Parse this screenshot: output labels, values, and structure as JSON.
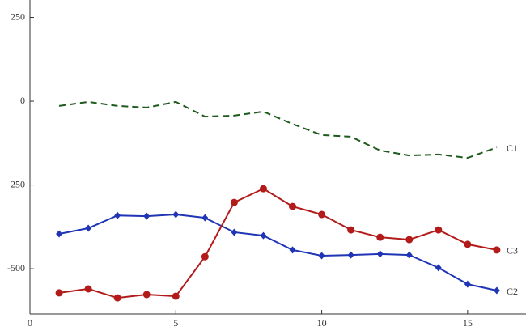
{
  "chart_data": {
    "type": "line",
    "x": [
      1,
      2,
      3,
      4,
      5,
      6,
      7,
      8,
      9,
      10,
      11,
      12,
      13,
      14,
      15,
      16
    ],
    "series": [
      {
        "name": "C1",
        "color": "#1e5a1e",
        "dash": true,
        "marker": "none",
        "values": [
          -14,
          -2,
          -14,
          -19,
          -2,
          -46,
          -43,
          -31,
          -68,
          -101,
          -106,
          -147,
          -162,
          -159,
          -169,
          -138
        ]
      },
      {
        "name": "C2",
        "color": "#1f35b5",
        "dash": false,
        "marker": "diamond",
        "values": [
          -396,
          -379,
          -341,
          -343,
          -338,
          -348,
          -391,
          -401,
          -444,
          -461,
          -459,
          -456,
          -459,
          -497,
          -546,
          -565
        ]
      },
      {
        "name": "C3",
        "color": "#b31b1b",
        "dash": false,
        "marker": "circle",
        "values": [
          -572,
          -560,
          -587,
          -577,
          -582,
          -464,
          -302,
          -261,
          -314,
          -338,
          -384,
          -406,
          -413,
          -384,
          -427,
          -444
        ]
      }
    ],
    "xlim": [
      0,
      17
    ],
    "xticks": [
      0,
      5,
      10,
      15
    ],
    "ylim": [
      -635,
      302
    ],
    "yticks": [
      250,
      0,
      -250,
      -500
    ],
    "grid": false
  }
}
